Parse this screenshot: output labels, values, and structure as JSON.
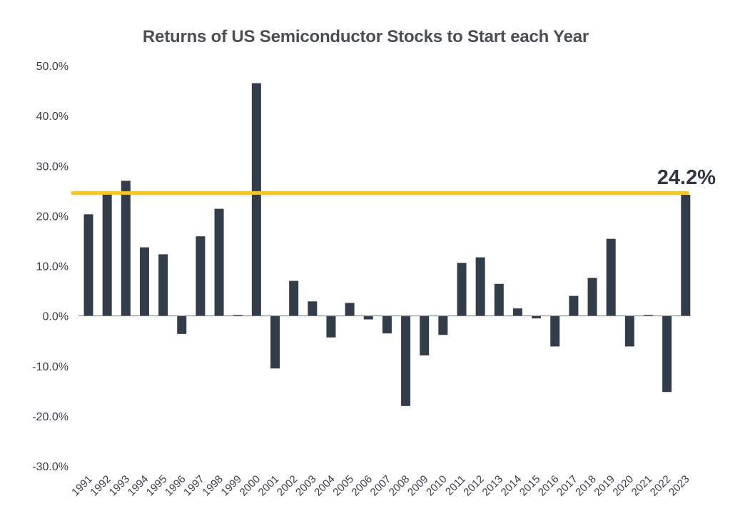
{
  "chart_data": {
    "type": "bar",
    "title": "Returns of US Semiconductor Stocks to Start each Year",
    "xlabel": "",
    "ylabel": "",
    "ylim": [
      -30,
      50
    ],
    "y_ticks": [
      "50.0%",
      "40.0%",
      "30.0%",
      "20.0%",
      "10.0%",
      "0.0%",
      "-10.0%",
      "-20.0%",
      "-30.0%"
    ],
    "y_tick_values": [
      50,
      40,
      30,
      20,
      10,
      0,
      -10,
      -20,
      -30
    ],
    "categories": [
      "1991",
      "1992",
      "1993",
      "1994",
      "1995",
      "1996",
      "1997",
      "1998",
      "1999",
      "2000",
      "2001",
      "2002",
      "2003",
      "2004",
      "2005",
      "2006",
      "2007",
      "2008",
      "2009",
      "2010",
      "2011",
      "2012",
      "2013",
      "2014",
      "2015",
      "2016",
      "2017",
      "2018",
      "2019",
      "2020",
      "2021",
      "2022",
      "2023"
    ],
    "values": [
      20.3,
      24.8,
      27.0,
      13.7,
      12.3,
      -3.6,
      15.9,
      21.4,
      0.2,
      46.5,
      -10.5,
      7.0,
      2.9,
      -4.3,
      2.6,
      -0.7,
      -3.5,
      -18.0,
      -7.9,
      -3.8,
      10.6,
      11.7,
      6.4,
      1.5,
      -0.5,
      -6.1,
      4.0,
      7.6,
      15.4,
      -6.1,
      0.2,
      -15.2,
      24.2
    ],
    "grid": false,
    "legend": "none",
    "colors": {
      "bar": "#323d49",
      "highlight_line": "#f5c22b",
      "zero_axis": "#7a7f85"
    },
    "highlight": {
      "value": 24.2,
      "label": "24.2%"
    }
  }
}
